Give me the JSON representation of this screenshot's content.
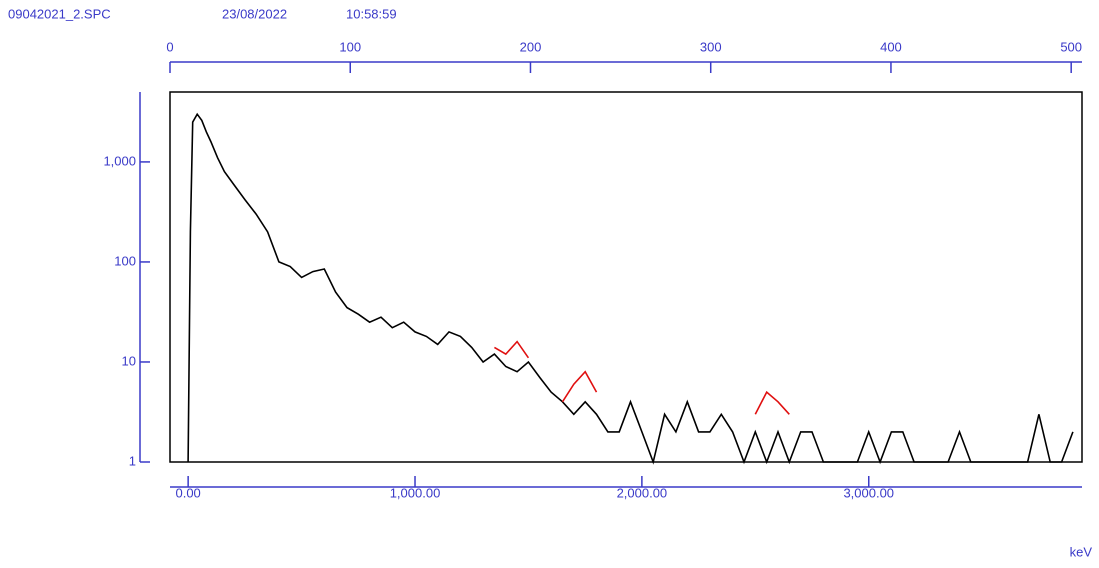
{
  "chart_data": {
    "type": "line",
    "file_name": "09042021_2.SPC",
    "date": "23/08/2022",
    "time": "10:58:59",
    "x_label": "keV",
    "log_y": true,
    "x": [
      0,
      10,
      20,
      40,
      60,
      80,
      100,
      130,
      160,
      200,
      250,
      300,
      350,
      400,
      450,
      500,
      550,
      600,
      650,
      700,
      750,
      800,
      850,
      900,
      950,
      1000,
      1050,
      1100,
      1150,
      1200,
      1250,
      1300,
      1350,
      1400,
      1450,
      1500,
      1550,
      1600,
      1650,
      1700,
      1750,
      1800,
      1850,
      1900,
      1950,
      2000,
      2050,
      2100,
      2150,
      2200,
      2250,
      2300,
      2350,
      2400,
      2450,
      2500,
      2550,
      2600,
      2650,
      2700,
      2750,
      2800,
      2850,
      2900,
      2950,
      3000,
      3050,
      3100,
      3150,
      3200,
      3250,
      3300,
      3350,
      3400,
      3450,
      3500,
      3550,
      3600,
      3650,
      3700,
      3750,
      3800,
      3850,
      3900
    ],
    "series": [
      {
        "color": "#000000",
        "values": [
          1,
          200,
          2500,
          3000,
          2600,
          2000,
          1600,
          1100,
          800,
          600,
          420,
          300,
          200,
          100,
          90,
          70,
          80,
          85,
          50,
          35,
          30,
          25,
          28,
          22,
          25,
          20,
          18,
          15,
          20,
          18,
          14,
          10,
          12,
          9,
          8,
          10,
          7,
          5,
          4,
          3,
          4,
          3,
          2,
          2,
          4,
          2,
          1,
          3,
          2,
          4,
          2,
          2,
          3,
          2,
          1,
          2,
          1,
          2,
          1,
          2,
          2,
          1,
          1,
          1,
          1,
          2,
          1,
          2,
          2,
          1,
          1,
          1,
          1,
          2,
          1,
          1,
          1,
          1,
          1,
          1,
          3,
          1,
          1,
          2
        ]
      },
      {
        "color": "#e01010",
        "values": [
          null,
          null,
          null,
          null,
          null,
          null,
          null,
          null,
          null,
          null,
          null,
          null,
          null,
          null,
          null,
          null,
          null,
          null,
          null,
          null,
          null,
          null,
          null,
          null,
          null,
          null,
          null,
          null,
          null,
          null,
          null,
          null,
          14,
          12,
          16,
          11,
          null,
          null,
          4,
          6,
          8,
          5,
          null,
          null,
          null,
          null,
          null,
          null,
          null,
          null,
          null,
          null,
          null,
          null,
          null,
          3,
          5,
          4,
          3,
          null,
          null,
          null,
          null,
          null,
          null,
          null,
          null,
          null,
          null,
          null,
          null,
          null,
          null,
          null,
          null,
          null,
          null,
          null,
          null,
          null,
          null,
          null,
          null,
          null
        ]
      }
    ],
    "xlim": [
      -80,
      3940
    ],
    "xticks": [
      {
        "value": 0,
        "label": "0.00"
      },
      {
        "value": 1000,
        "label": "1,000.00"
      },
      {
        "value": 2000,
        "label": "2,000.00"
      },
      {
        "value": 3000,
        "label": "3,000.00"
      }
    ],
    "x2lim": [
      0,
      506
    ],
    "x2ticks": [
      0,
      100,
      200,
      300,
      400,
      500
    ],
    "ylim": [
      1,
      5000
    ],
    "yticks": [
      1,
      10,
      100,
      {
        "value": 1000,
        "label": "1,000"
      }
    ]
  }
}
